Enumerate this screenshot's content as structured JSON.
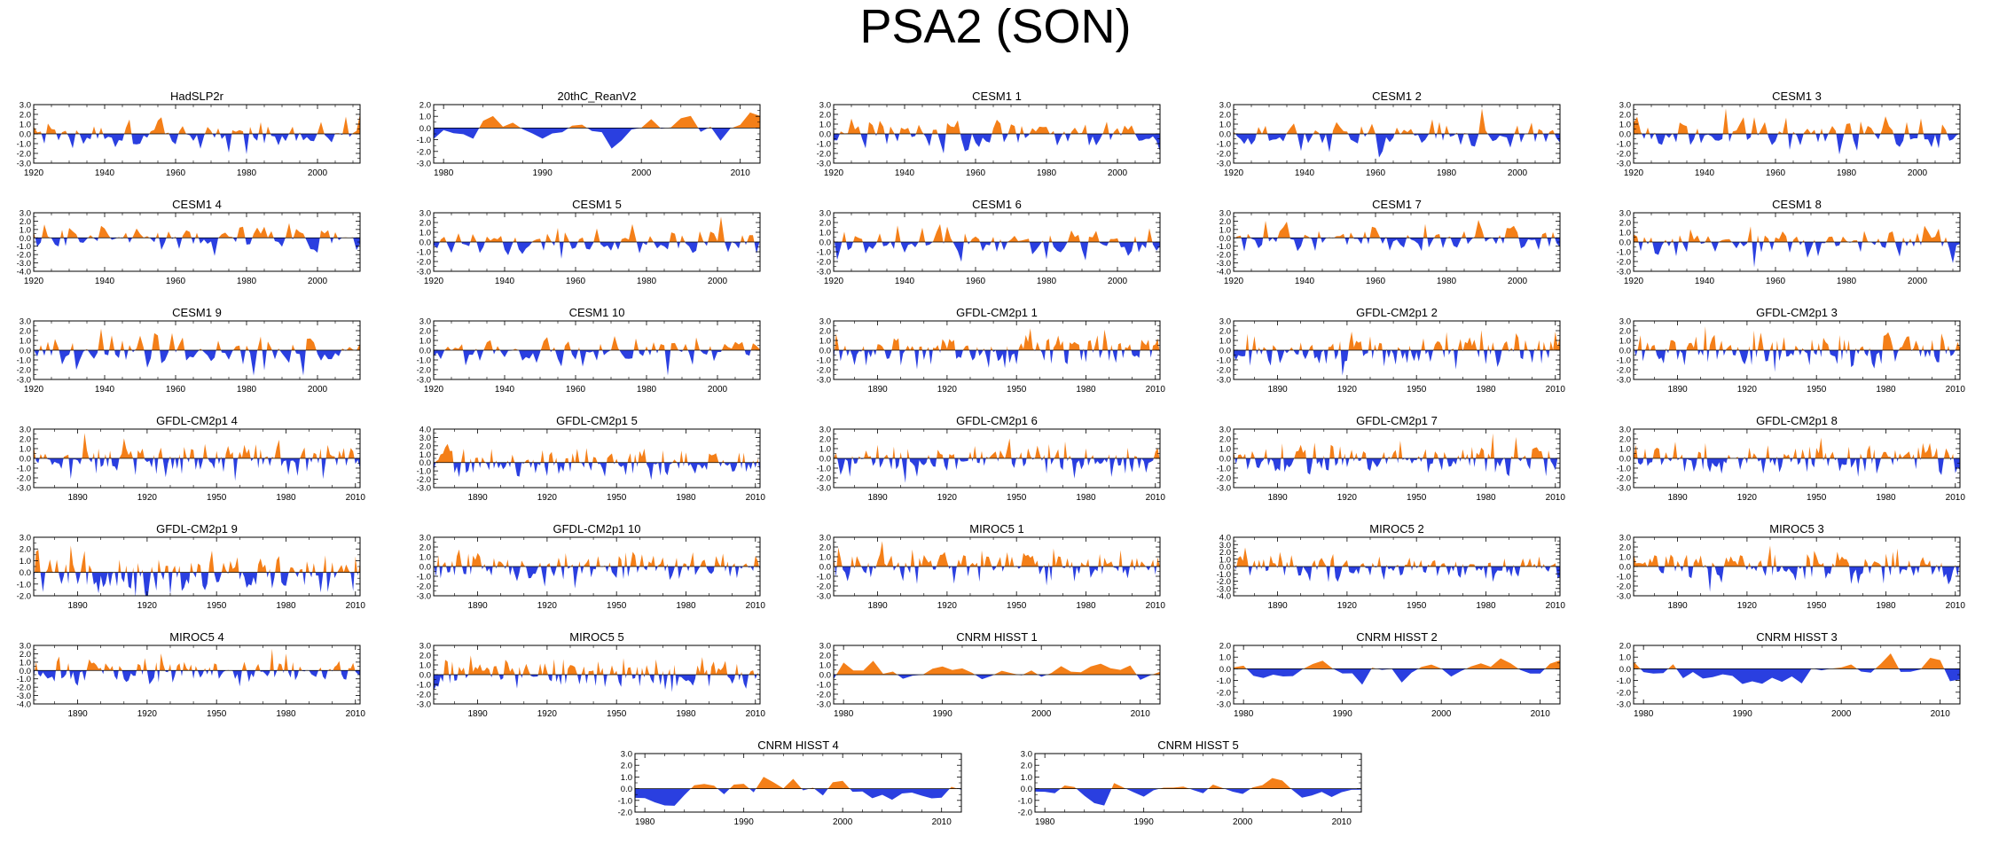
{
  "title": "PSA2 (SON)",
  "colors": {
    "positive": "#f47f18",
    "negative": "#2a3fe0",
    "axis": "#000000"
  },
  "x_tick_sets": {
    "hist": [
      "1920",
      "1940",
      "1960",
      "1980",
      "2000"
    ],
    "reanal": [
      "1980",
      "1990",
      "2000",
      "2010"
    ],
    "gfdl": [
      "1890",
      "1920",
      "1950",
      "1980",
      "2010"
    ]
  },
  "y_tick_sets": {
    "p3m3": [
      "3.0",
      "2.0",
      "1.0",
      "0.0",
      "-1.0",
      "-2.0",
      "-3.0"
    ],
    "p2m3": [
      "2.0",
      "1.0",
      "0.0",
      "-1.0",
      "-2.0",
      "-3.0"
    ],
    "p3m4": [
      "3.0",
      "2.0",
      "1.0",
      "0.0",
      "-1.0",
      "-2.0",
      "-3.0",
      "-4.0"
    ],
    "p4m3": [
      "4.0",
      "3.0",
      "2.0",
      "1.0",
      "0.0",
      "-1.0",
      "-2.0",
      "-3.0"
    ],
    "p3m2": [
      "3.0",
      "2.0",
      "1.0",
      "0.0",
      "-1.0",
      "-2.0"
    ],
    "p4m4": [
      "4.0",
      "3.0",
      "2.0",
      "1.0",
      "0.0",
      "-1.0",
      "-2.0",
      "-3.0",
      "-4.0"
    ],
    "p2m2": [
      "2.0",
      "1.0",
      "0.0",
      "-1.0",
      "-2.0"
    ]
  },
  "chart_data": [
    {
      "type": "area",
      "title": "HadSLP2r",
      "x_range": [
        1920,
        2012
      ],
      "ylim": [
        -3,
        3
      ],
      "x_ticks": "hist",
      "y_ticks": "p3m3"
    },
    {
      "type": "area",
      "title": "20thC_ReanV2",
      "x_range": [
        1979,
        2012
      ],
      "ylim": [
        -3,
        2
      ],
      "x_ticks": "reanal",
      "y_ticks": "p2m3"
    },
    {
      "type": "area",
      "title": "CESM1 1",
      "x_range": [
        1920,
        2012
      ],
      "ylim": [
        -3,
        3
      ],
      "x_ticks": "hist",
      "y_ticks": "p3m3"
    },
    {
      "type": "area",
      "title": "CESM1 2",
      "x_range": [
        1920,
        2012
      ],
      "ylim": [
        -3,
        3
      ],
      "x_ticks": "hist",
      "y_ticks": "p3m3"
    },
    {
      "type": "area",
      "title": "CESM1 3",
      "x_range": [
        1920,
        2012
      ],
      "ylim": [
        -3,
        3
      ],
      "x_ticks": "hist",
      "y_ticks": "p3m3"
    },
    {
      "type": "area",
      "title": "CESM1 4",
      "x_range": [
        1920,
        2012
      ],
      "ylim": [
        -4,
        3
      ],
      "x_ticks": "hist",
      "y_ticks": "p3m4"
    },
    {
      "type": "area",
      "title": "CESM1 5",
      "x_range": [
        1920,
        2012
      ],
      "ylim": [
        -3,
        3
      ],
      "x_ticks": "hist",
      "y_ticks": "p3m3"
    },
    {
      "type": "area",
      "title": "CESM1 6",
      "x_range": [
        1920,
        2012
      ],
      "ylim": [
        -3,
        3
      ],
      "x_ticks": "hist",
      "y_ticks": "p3m3"
    },
    {
      "type": "area",
      "title": "CESM1 7",
      "x_range": [
        1920,
        2012
      ],
      "ylim": [
        -4,
        3
      ],
      "x_ticks": "hist",
      "y_ticks": "p3m4"
    },
    {
      "type": "area",
      "title": "CESM1 8",
      "x_range": [
        1920,
        2012
      ],
      "ylim": [
        -3,
        3
      ],
      "x_ticks": "hist",
      "y_ticks": "p3m3"
    },
    {
      "type": "area",
      "title": "CESM1 9",
      "x_range": [
        1920,
        2012
      ],
      "ylim": [
        -3,
        3
      ],
      "x_ticks": "hist",
      "y_ticks": "p3m3"
    },
    {
      "type": "area",
      "title": "CESM1 10",
      "x_range": [
        1920,
        2012
      ],
      "ylim": [
        -3,
        3
      ],
      "x_ticks": "hist",
      "y_ticks": "p3m3"
    },
    {
      "type": "area",
      "title": "GFDL-CM2p1 1",
      "x_range": [
        1871,
        2012
      ],
      "ylim": [
        -3,
        3
      ],
      "x_ticks": "gfdl",
      "y_ticks": "p3m3"
    },
    {
      "type": "area",
      "title": "GFDL-CM2p1 2",
      "x_range": [
        1871,
        2012
      ],
      "ylim": [
        -3,
        3
      ],
      "x_ticks": "gfdl",
      "y_ticks": "p3m3"
    },
    {
      "type": "area",
      "title": "GFDL-CM2p1 3",
      "x_range": [
        1871,
        2012
      ],
      "ylim": [
        -3,
        3
      ],
      "x_ticks": "gfdl",
      "y_ticks": "p3m3"
    },
    {
      "type": "area",
      "title": "GFDL-CM2p1 4",
      "x_range": [
        1871,
        2012
      ],
      "ylim": [
        -3,
        3
      ],
      "x_ticks": "gfdl",
      "y_ticks": "p3m3"
    },
    {
      "type": "area",
      "title": "GFDL-CM2p1 5",
      "x_range": [
        1871,
        2012
      ],
      "ylim": [
        -3,
        4
      ],
      "x_ticks": "gfdl",
      "y_ticks": "p4m3"
    },
    {
      "type": "area",
      "title": "GFDL-CM2p1 6",
      "x_range": [
        1871,
        2012
      ],
      "ylim": [
        -3,
        3
      ],
      "x_ticks": "gfdl",
      "y_ticks": "p3m3"
    },
    {
      "type": "area",
      "title": "GFDL-CM2p1 7",
      "x_range": [
        1871,
        2012
      ],
      "ylim": [
        -3,
        3
      ],
      "x_ticks": "gfdl",
      "y_ticks": "p3m3"
    },
    {
      "type": "area",
      "title": "GFDL-CM2p1 8",
      "x_range": [
        1871,
        2012
      ],
      "ylim": [
        -3,
        3
      ],
      "x_ticks": "gfdl",
      "y_ticks": "p3m3"
    },
    {
      "type": "area",
      "title": "GFDL-CM2p1 9",
      "x_range": [
        1871,
        2012
      ],
      "ylim": [
        -2,
        3
      ],
      "x_ticks": "gfdl",
      "y_ticks": "p3m2"
    },
    {
      "type": "area",
      "title": "GFDL-CM2p1 10",
      "x_range": [
        1871,
        2012
      ],
      "ylim": [
        -3,
        3
      ],
      "x_ticks": "gfdl",
      "y_ticks": "p3m3"
    },
    {
      "type": "area",
      "title": "MIROC5 1",
      "x_range": [
        1871,
        2012
      ],
      "ylim": [
        -3,
        3
      ],
      "x_ticks": "gfdl",
      "y_ticks": "p3m3"
    },
    {
      "type": "area",
      "title": "MIROC5 2",
      "x_range": [
        1871,
        2012
      ],
      "ylim": [
        -4,
        4
      ],
      "x_ticks": "gfdl",
      "y_ticks": "p4m4"
    },
    {
      "type": "area",
      "title": "MIROC5 3",
      "x_range": [
        1871,
        2012
      ],
      "ylim": [
        -3,
        3
      ],
      "x_ticks": "gfdl",
      "y_ticks": "p3m3"
    },
    {
      "type": "area",
      "title": "MIROC5 4",
      "x_range": [
        1871,
        2012
      ],
      "ylim": [
        -4,
        3
      ],
      "x_ticks": "gfdl",
      "y_ticks": "p3m4"
    },
    {
      "type": "area",
      "title": "MIROC5 5",
      "x_range": [
        1871,
        2012
      ],
      "ylim": [
        -3,
        3
      ],
      "x_ticks": "gfdl",
      "y_ticks": "p3m3"
    },
    {
      "type": "area",
      "title": "CNRM HISST 1",
      "x_range": [
        1979,
        2012
      ],
      "ylim": [
        -3,
        3
      ],
      "x_ticks": "reanal",
      "y_ticks": "p3m3"
    },
    {
      "type": "area",
      "title": "CNRM HISST 2",
      "x_range": [
        1979,
        2012
      ],
      "ylim": [
        -3,
        2
      ],
      "x_ticks": "reanal",
      "y_ticks": "p2m3"
    },
    {
      "type": "area",
      "title": "CNRM HISST 3",
      "x_range": [
        1979,
        2012
      ],
      "ylim": [
        -3,
        2
      ],
      "x_ticks": "reanal",
      "y_ticks": "p2m3"
    },
    {
      "type": "area",
      "title": "CNRM HISST 4",
      "x_range": [
        1979,
        2012
      ],
      "ylim": [
        -2,
        3
      ],
      "x_ticks": "reanal",
      "y_ticks": "p3m2"
    },
    {
      "type": "area",
      "title": "CNRM HISST 5",
      "x_range": [
        1979,
        2012
      ],
      "ylim": [
        -2,
        3
      ],
      "x_ticks": "reanal",
      "y_ticks": "p3m2"
    }
  ]
}
